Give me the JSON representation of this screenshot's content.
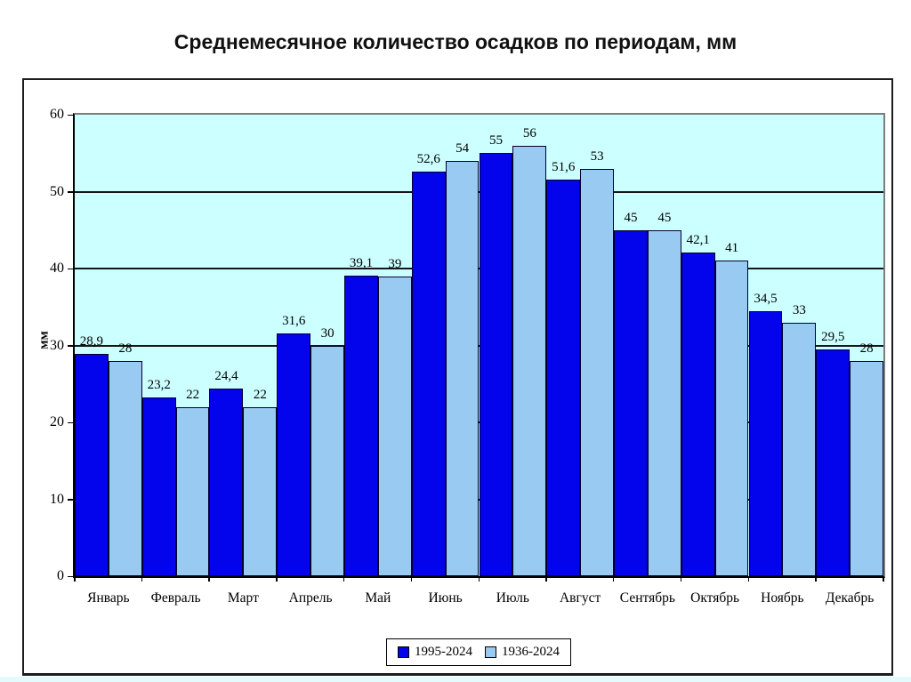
{
  "page": {
    "background": "#FFFFFF",
    "bottom_strip_color": "#E4FBFB"
  },
  "chart_data": {
    "type": "bar",
    "title": "Среднемесячное количество осадков по периодам, мм",
    "ylabel": "мм",
    "ylim": [
      0,
      60
    ],
    "yticks": [
      0,
      10,
      20,
      30,
      40,
      50,
      60
    ],
    "grid": true,
    "legend_position": "bottom-center",
    "plot_background": "#CCFFFF",
    "categories": [
      "Январь",
      "Февраль",
      "Март",
      "Апрель",
      "Май",
      "Июнь",
      "Июль",
      "Август",
      "Сентябрь",
      "Октябрь",
      "Ноябрь",
      "Декабрь"
    ],
    "series": [
      {
        "name": "1995-2024",
        "color": "#0404EC",
        "values": [
          28.9,
          23.2,
          24.4,
          31.6,
          39.1,
          52.6,
          55,
          51.6,
          45,
          42.1,
          34.5,
          29.5
        ],
        "labels": [
          "28,9",
          "23,2",
          "24,4",
          "31,6",
          "39,1",
          "52,6",
          "55",
          "51,6",
          "45",
          "42,1",
          "34,5",
          "29,5"
        ]
      },
      {
        "name": "1936-2024",
        "color": "#99CBF2",
        "values": [
          28,
          22,
          22,
          30,
          39,
          54,
          56,
          53,
          45,
          41,
          33,
          28
        ],
        "labels": [
          "28",
          "22",
          "22",
          "30",
          "39",
          "54",
          "56",
          "53",
          "45",
          "41",
          "33",
          "28"
        ]
      }
    ]
  }
}
